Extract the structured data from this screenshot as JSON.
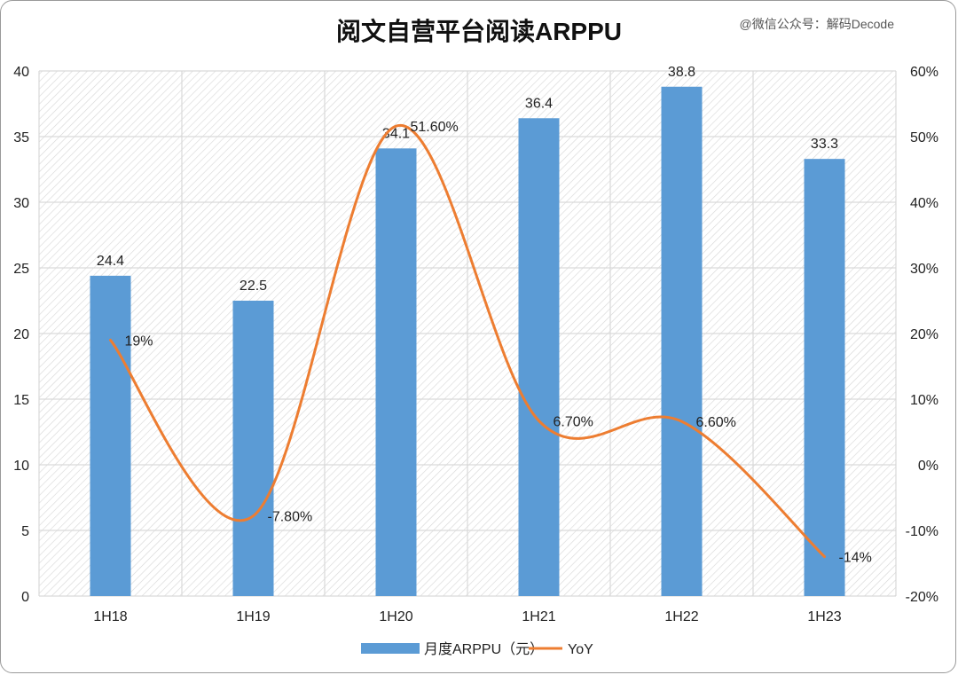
{
  "title": "阅文自营平台阅读ARPPU",
  "watermark": "@微信公众号：解码Decode",
  "chart_data": {
    "type": "bar",
    "categories": [
      "1H18",
      "1H19",
      "1H20",
      "1H21",
      "1H22",
      "1H23"
    ],
    "series": [
      {
        "name": "月度ARPPU（元）",
        "type": "bar",
        "axis": "left",
        "values": [
          24.4,
          22.5,
          34.1,
          36.4,
          38.8,
          33.3
        ],
        "labels": [
          "24.4",
          "22.5",
          "34.1",
          "36.4",
          "38.8",
          "33.3"
        ],
        "color": "#5b9bd5"
      },
      {
        "name": "YoY",
        "type": "line",
        "axis": "right",
        "smooth": true,
        "values": [
          19,
          -7.8,
          51.6,
          6.7,
          6.6,
          -14
        ],
        "labels": [
          "19%",
          "-7.80%",
          "51.60%",
          "6.70%",
          "6.60%",
          "-14%"
        ],
        "color": "#ed7d31"
      }
    ],
    "y_left": {
      "min": 0,
      "max": 40,
      "ticks": [
        "0",
        "5",
        "10",
        "15",
        "20",
        "25",
        "30",
        "35",
        "40"
      ]
    },
    "y_right": {
      "min": -20,
      "max": 60,
      "ticks": [
        "-20%",
        "-10%",
        "0%",
        "10%",
        "20%",
        "30%",
        "40%",
        "50%",
        "60%"
      ]
    },
    "grid": true,
    "legend_position": "bottom"
  }
}
